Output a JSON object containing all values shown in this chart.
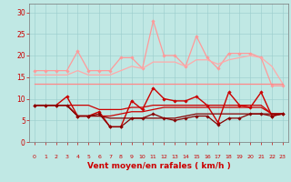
{
  "background_color": "#c0e8e4",
  "grid_color": "#99cccc",
  "x_values": [
    0,
    1,
    2,
    3,
    4,
    5,
    6,
    7,
    8,
    9,
    10,
    11,
    12,
    13,
    14,
    15,
    16,
    17,
    18,
    19,
    20,
    21,
    22,
    23
  ],
  "xlabel": "Vent moyen/en rafales ( km/h )",
  "xlabel_color": "#cc0000",
  "xlabel_fontsize": 6.5,
  "tick_color": "#cc0000",
  "ylim": [
    0,
    32
  ],
  "yticks": [
    0,
    5,
    10,
    15,
    20,
    25,
    30
  ],
  "lines": [
    {
      "color": "#ff9999",
      "values": [
        16.5,
        16.5,
        16.5,
        16.5,
        21,
        16.5,
        16.5,
        16.5,
        19.5,
        19.5,
        17,
        28,
        20,
        20,
        17.5,
        24.5,
        19.5,
        17,
        20.5,
        20.5,
        20.5,
        19.5,
        13,
        13
      ],
      "linewidth": 0.9,
      "marker": "D",
      "markersize": 1.8
    },
    {
      "color": "#ffaaaa",
      "values": [
        15.5,
        15.5,
        15.5,
        15.5,
        16.5,
        15.5,
        15.5,
        15.5,
        16.5,
        17.5,
        17.0,
        18.5,
        18.5,
        18.5,
        17.5,
        19.0,
        19.0,
        18.0,
        19.0,
        19.5,
        20.0,
        19.5,
        17.5,
        13.5
      ],
      "linewidth": 0.9,
      "marker": null,
      "markersize": 0
    },
    {
      "color": "#ff8888",
      "values": [
        13.5,
        13.5,
        13.5,
        13.5,
        13.5,
        13.5,
        13.5,
        13.5,
        13.5,
        13.5,
        13.5,
        13.5,
        13.5,
        13.5,
        13.5,
        13.5,
        13.5,
        13.5,
        13.5,
        13.5,
        13.5,
        13.5,
        13.5,
        13.5
      ],
      "linewidth": 0.9,
      "marker": null,
      "markersize": 0
    },
    {
      "color": "#cc0000",
      "values": [
        8.5,
        8.5,
        8.5,
        10.5,
        6.0,
        6.0,
        7.0,
        3.5,
        3.5,
        9.5,
        7.5,
        12.5,
        10.0,
        9.5,
        9.5,
        10.5,
        8.5,
        4.5,
        11.5,
        8.5,
        8.0,
        11.5,
        6.0,
        6.5
      ],
      "linewidth": 1.0,
      "marker": "D",
      "markersize": 1.8
    },
    {
      "color": "#cc0000",
      "values": [
        8.5,
        8.5,
        8.5,
        8.5,
        8.5,
        8.5,
        7.5,
        7.5,
        7.5,
        8.0,
        8.0,
        8.5,
        8.5,
        8.5,
        8.5,
        8.5,
        8.5,
        8.5,
        8.5,
        8.5,
        8.5,
        8.5,
        6.5,
        6.5
      ],
      "linewidth": 0.9,
      "marker": null,
      "markersize": 0
    },
    {
      "color": "#cc0000",
      "values": [
        8.5,
        8.5,
        8.5,
        8.5,
        6.0,
        6.0,
        6.0,
        6.0,
        6.5,
        7.0,
        7.0,
        7.5,
        8.0,
        8.0,
        8.0,
        8.0,
        8.0,
        8.0,
        8.0,
        8.0,
        8.0,
        8.0,
        6.5,
        6.5
      ],
      "linewidth": 0.9,
      "marker": null,
      "markersize": 0
    },
    {
      "color": "#880000",
      "values": [
        8.5,
        8.5,
        8.5,
        8.5,
        6.0,
        6.0,
        6.5,
        3.5,
        3.5,
        5.5,
        5.5,
        6.5,
        5.5,
        5.0,
        5.5,
        6.0,
        6.0,
        4.0,
        5.5,
        5.5,
        6.5,
        6.5,
        6.0,
        6.5
      ],
      "linewidth": 0.9,
      "marker": "D",
      "markersize": 1.8
    },
    {
      "color": "#880000",
      "values": [
        8.5,
        8.5,
        8.5,
        8.5,
        6.0,
        6.0,
        6.0,
        5.5,
        5.5,
        5.5,
        5.5,
        5.5,
        5.5,
        5.5,
        6.0,
        6.5,
        6.5,
        6.5,
        6.5,
        6.5,
        6.5,
        6.5,
        6.5,
        6.5
      ],
      "linewidth": 0.9,
      "marker": null,
      "markersize": 0
    }
  ],
  "arrow_symbol": "↗"
}
